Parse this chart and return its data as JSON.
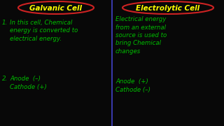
{
  "bg_color": "#080808",
  "divider_color": "#4444cc",
  "title_left": "Galvanic Cell",
  "title_right": "Electrolytic Cell",
  "title_color": "#ffff00",
  "title_ellipse_color": "#cc2222",
  "text_color": "#00bb00",
  "left_num1": "1.",
  "left_text1_line1": "In this cell, Chemical",
  "left_text1_line2": "energy is converted to",
  "left_text1_line3": "electrical energy.",
  "left_num2": "2.",
  "left_anode": "Anode  (–)",
  "left_cathode": "Cathode (+)",
  "right_text1_line1": "Electrical energy",
  "right_text1_line2": "from an external",
  "right_text1_line3": "source is used to",
  "right_text1_line4": "bring Chemical",
  "right_text1_line5": "changes",
  "right_anode": "Anode  (+)",
  "right_cathode": "Cathode (–)"
}
